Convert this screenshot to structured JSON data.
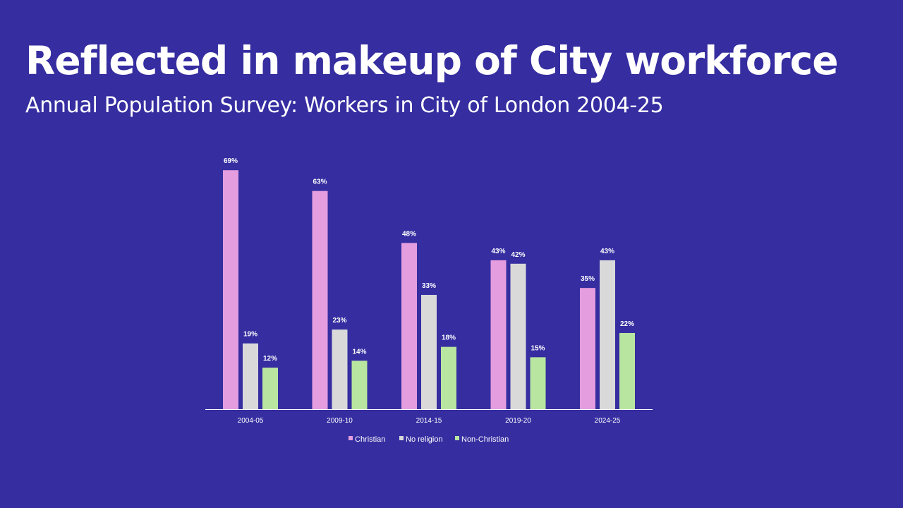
{
  "header": {
    "title": "Reflected in makeup of City workforce",
    "subtitle": "Annual Population Survey: Workers in City of London 2004-25"
  },
  "chart_data": {
    "type": "bar",
    "categories": [
      "2004-05",
      "2009-10",
      "2014-15",
      "2019-20",
      "2024-25"
    ],
    "series": [
      {
        "name": "Christian",
        "color": "#e49ddf",
        "values": [
          69,
          63,
          48,
          43,
          35
        ],
        "labels": [
          "69%",
          "63%",
          "48%",
          "43%",
          "35%"
        ]
      },
      {
        "name": "No religion",
        "color": "#d9d9d9",
        "values": [
          19,
          23,
          33,
          42,
          43
        ],
        "labels": [
          "19%",
          "23%",
          "33%",
          "42%",
          "43%"
        ]
      },
      {
        "name": "Non-Christian",
        "color": "#b8e6a0",
        "values": [
          12,
          14,
          18,
          15,
          22
        ],
        "labels": [
          "12%",
          "14%",
          "18%",
          "15%",
          "22%"
        ]
      }
    ],
    "ylim": [
      0,
      70
    ],
    "value_suffix": "%",
    "grid": false,
    "y_axis_visible": false,
    "legend_position": "bottom",
    "axis_color": "#ffffff"
  }
}
